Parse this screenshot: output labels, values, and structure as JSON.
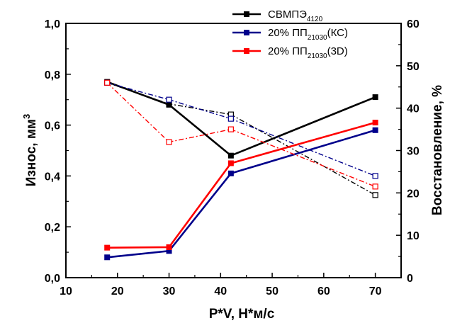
{
  "chart_data": {
    "type": "line",
    "xlabel": "P*V, Н*м/с",
    "ylabel_left": "Износ, мм",
    "ylabel_left_sup": "3",
    "ylabel_right": "Восстановление, %",
    "xlim": [
      10,
      75
    ],
    "ylim_left": [
      0,
      1.0
    ],
    "ylim_right": [
      0,
      60
    ],
    "x_ticks": [
      "10",
      "20",
      "30",
      "40",
      "50",
      "60",
      "70"
    ],
    "y_left_ticks": [
      "0,0",
      "0,2",
      "0,4",
      "0,6",
      "0,8",
      "1,0"
    ],
    "y_right_ticks": [
      "0",
      "10",
      "20",
      "30",
      "40",
      "50",
      "60"
    ],
    "x": [
      18,
      30,
      42,
      70
    ],
    "grid": false,
    "legend_position": "top-center",
    "series": [
      {
        "name_main": "СВМПЭ",
        "name_sub": "4120",
        "name_tail": "",
        "color": "#000000",
        "wear": [
          0.77,
          0.68,
          0.48,
          0.71
        ],
        "recovery": [
          46,
          41,
          38.5,
          19.5
        ]
      },
      {
        "name_main": "20% ПП",
        "name_sub": "21030",
        "name_tail": "(КС)",
        "color": "#00008b",
        "wear": [
          0.08,
          0.105,
          0.41,
          0.58
        ],
        "recovery": [
          46,
          42,
          37.5,
          24
        ]
      },
      {
        "name_main": "20% ПП",
        "name_sub": "21030",
        "name_tail": "(3D)",
        "color": "#ff0000",
        "wear": [
          0.118,
          0.12,
          0.45,
          0.61
        ],
        "recovery": [
          46,
          32,
          35,
          21.5
        ]
      }
    ]
  }
}
